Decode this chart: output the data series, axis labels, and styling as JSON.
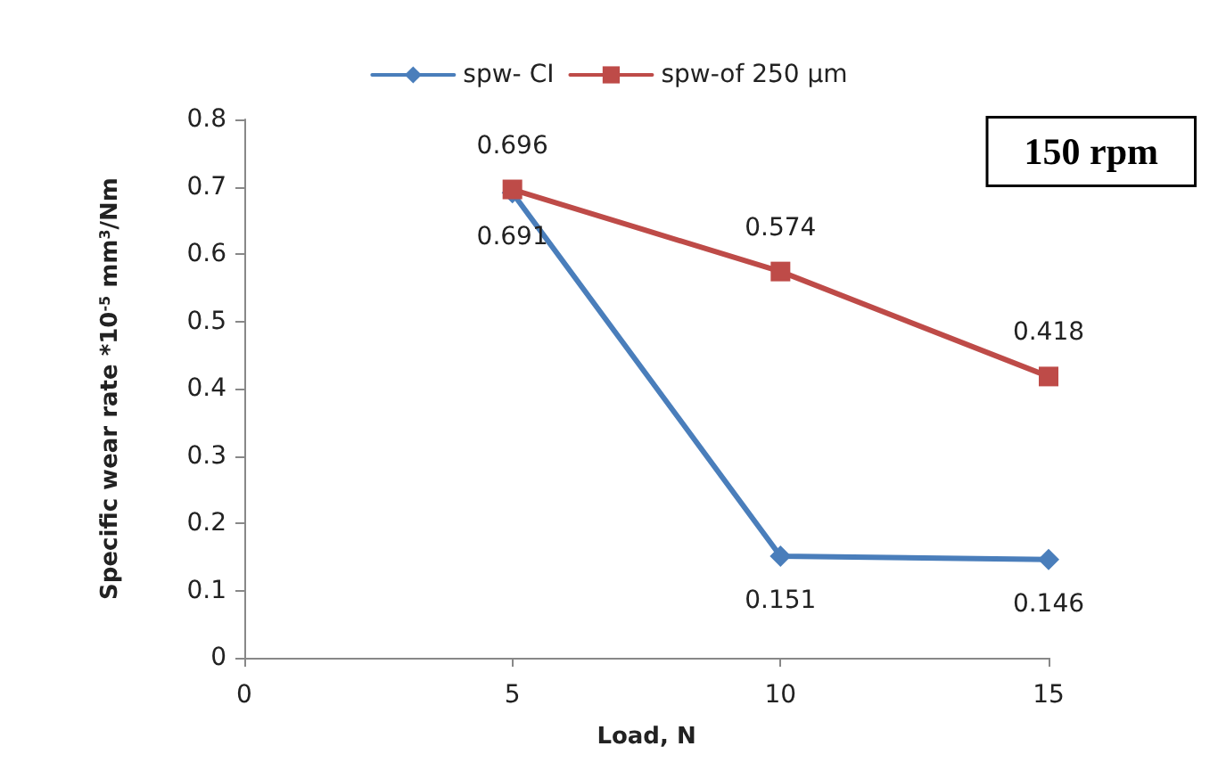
{
  "chart_data": {
    "type": "line",
    "xlabel": "Load, N",
    "ylabel": "Specific wear rate *10$^{-5}$ mm$^{3}$/Nm",
    "x": [
      5,
      10,
      15
    ],
    "series": [
      {
        "name": "spw- CI",
        "color": "#4a7ebb",
        "values": [
          0.691,
          0.151,
          0.146
        ],
        "marker": "diamond"
      },
      {
        "name": "spw-of 250 µm",
        "color": "#be4b48",
        "values": [
          0.696,
          0.574,
          0.418
        ],
        "marker": "square"
      }
    ],
    "xlim": [
      0,
      15
    ],
    "xticks": [
      0,
      5,
      10,
      15
    ],
    "ylim": [
      0,
      0.8
    ],
    "yticks": [
      0,
      0.1,
      0.2,
      0.3,
      0.4,
      0.5,
      0.6,
      0.7,
      0.8
    ],
    "annotations": [
      "150 rpm"
    ],
    "data_labels": true,
    "grid": false,
    "legend": "top",
    "line_style": "solid"
  }
}
